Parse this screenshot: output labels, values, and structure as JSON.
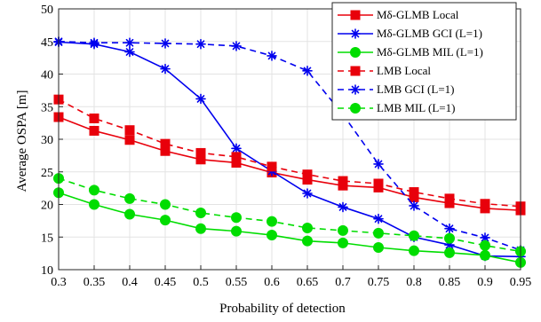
{
  "chart_data": {
    "type": "line",
    "xlabel": "Probability of detection",
    "ylabel": "Average OSPA  [m]",
    "xlim": [
      0.3,
      0.95
    ],
    "ylim": [
      10,
      50
    ],
    "x_ticks": [
      "0.3",
      "0.35",
      "0.4",
      "0.45",
      "0.5",
      "0.55",
      "0.6",
      "0.65",
      "0.7",
      "0.75",
      "0.8",
      "0.85",
      "0.9",
      "0.95"
    ],
    "y_ticks": [
      "10",
      "15",
      "20",
      "25",
      "30",
      "35",
      "40",
      "45",
      "50"
    ],
    "grid": true,
    "legend_position": "top-right",
    "x": [
      0.3,
      0.35,
      0.4,
      0.45,
      0.5,
      0.55,
      0.6,
      0.65,
      0.7,
      0.75,
      0.8,
      0.85,
      0.9,
      0.95
    ],
    "series": [
      {
        "name": "Mδ-GLMB Local",
        "color": "#e8000b",
        "dash": "solid",
        "marker": "square",
        "values": [
          33.4,
          31.3,
          29.9,
          28.2,
          26.9,
          26.4,
          24.9,
          23.8,
          22.9,
          22.6,
          21.1,
          20.2,
          19.4,
          19.1
        ]
      },
      {
        "name": "Mδ-GLMB GCI (L=1)",
        "color": "#0000ee",
        "dash": "solid",
        "marker": "star",
        "values": [
          44.9,
          44.6,
          43.4,
          40.8,
          36.2,
          28.6,
          25.1,
          21.7,
          19.6,
          17.8,
          15.0,
          13.8,
          12.1,
          12.0
        ]
      },
      {
        "name": "Mδ-GLMB MIL (L=1)",
        "color": "#00dd00",
        "dash": "solid",
        "marker": "circle",
        "values": [
          21.8,
          20.0,
          18.5,
          17.6,
          16.3,
          15.9,
          15.3,
          14.4,
          14.1,
          13.4,
          12.9,
          12.6,
          12.2,
          11.1
        ]
      },
      {
        "name": "LMB Local",
        "color": "#e8000b",
        "dash": "dashed",
        "marker": "square",
        "values": [
          36.1,
          33.2,
          31.4,
          29.3,
          27.9,
          27.3,
          25.8,
          24.6,
          23.6,
          23.2,
          21.9,
          20.9,
          20.1,
          19.7
        ]
      },
      {
        "name": "LMB GCI (L=1)",
        "color": "#0000ee",
        "dash": "dashed",
        "marker": "star",
        "values": [
          45.0,
          44.8,
          44.8,
          44.7,
          44.6,
          44.3,
          42.8,
          40.5,
          33.8,
          26.2,
          19.8,
          16.3,
          14.9,
          13.0
        ]
      },
      {
        "name": "LMB MIL (L=1)",
        "color": "#00dd00",
        "dash": "dashed",
        "marker": "circle",
        "values": [
          24.0,
          22.2,
          20.9,
          20.0,
          18.7,
          18.0,
          17.4,
          16.4,
          16.0,
          15.6,
          15.2,
          14.8,
          13.7,
          12.8
        ]
      }
    ]
  }
}
